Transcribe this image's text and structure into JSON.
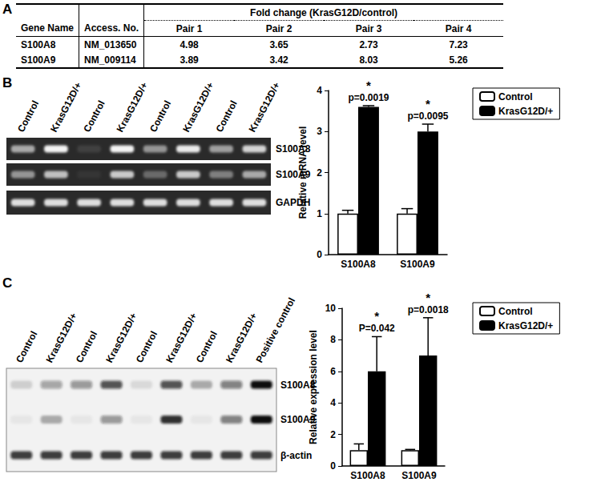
{
  "panel_labels": [
    "A",
    "B",
    "C"
  ],
  "table": {
    "group_header": "Fold change (KrasG12D/control)",
    "columns": [
      "Gene Name",
      "Access. No.",
      "Pair 1",
      "Pair 2",
      "Pair 3",
      "Pair 4"
    ],
    "rows": [
      [
        "S100A8",
        "NM_013650",
        4.98,
        3.65,
        2.73,
        7.23
      ],
      [
        "S100A9",
        "NM_009114",
        3.89,
        3.42,
        8.03,
        5.26
      ]
    ]
  },
  "gels": [
    {
      "style": "dark",
      "lanes": [
        "Control",
        "KrasG12D/+",
        "Control",
        "KrasG12D/+",
        "Control",
        "KrasG12D/+",
        "Control",
        "KrasG12D/+"
      ],
      "rows": [
        {
          "label": "S100A8",
          "intensity": [
            0.6,
            0.95,
            0.1,
            0.95,
            0.5,
            0.9,
            0.55,
            0.8
          ]
        },
        {
          "label": "S100A9",
          "intensity": [
            0.5,
            0.7,
            0.05,
            0.75,
            0.3,
            0.75,
            0.4,
            0.6
          ]
        },
        {
          "label": "GAPDH",
          "intensity": [
            0.85,
            0.85,
            0.85,
            0.85,
            0.85,
            0.85,
            0.85,
            0.85
          ]
        }
      ]
    },
    {
      "style": "light",
      "lanes": [
        "Control",
        "KrasG12D/+",
        "Control",
        "KrasG12D/+",
        "Control",
        "KrasG12D/+",
        "Control",
        "KrasG12D/+",
        "Positive control"
      ],
      "rows": [
        {
          "label": "S100A8",
          "intensity": [
            0.15,
            0.35,
            0.4,
            0.7,
            0.1,
            0.7,
            0.3,
            0.5,
            1.0
          ]
        },
        {
          "label": "S100A9",
          "intensity": [
            0.05,
            0.3,
            0.05,
            0.4,
            0.05,
            0.85,
            0.05,
            0.5,
            1.0
          ]
        },
        {
          "label": "β-actin",
          "intensity": [
            0.8,
            0.8,
            0.8,
            0.8,
            0.8,
            0.8,
            0.8,
            0.8,
            0.8
          ]
        }
      ]
    }
  ],
  "chart_data": [
    {
      "type": "bar",
      "y_label": "Relative mRNA level",
      "categories": [
        "S100A8",
        "S100A9"
      ],
      "series": [
        {
          "name": "Control",
          "color": "#ffffff",
          "values": [
            1,
            1
          ],
          "errors": [
            0.08,
            0.12
          ]
        },
        {
          "name": "KrasG12D/+",
          "color": "#000000",
          "values": [
            3.6,
            3.0
          ],
          "errors": [
            0.03,
            0.18
          ]
        }
      ],
      "ylim": [
        0,
        4
      ],
      "yticks": [
        0,
        1,
        2,
        3,
        4
      ],
      "grid": false,
      "legend": "upper right",
      "annotations": [
        {
          "category": "S100A8",
          "series": "KrasG12D/+",
          "texts": [
            "*",
            "p=0.0019"
          ]
        },
        {
          "category": "S100A9",
          "series": "KrasG12D/+",
          "texts": [
            "*",
            "p=0.0095"
          ]
        }
      ]
    },
    {
      "type": "bar",
      "y_label": "Relative expression level",
      "categories": [
        "S100A8",
        "S100A9"
      ],
      "series": [
        {
          "name": "Control",
          "color": "#ffffff",
          "values": [
            1,
            1
          ],
          "errors": [
            0.4,
            0.05
          ]
        },
        {
          "name": "KrasG12D/+",
          "color": "#000000",
          "values": [
            6.0,
            7.0
          ],
          "errors": [
            2.2,
            2.4
          ]
        }
      ],
      "ylim": [
        0,
        10
      ],
      "yticks": [
        0,
        2,
        4,
        6,
        8,
        10
      ],
      "grid": false,
      "legend": "upper right",
      "annotations": [
        {
          "category": "S100A8",
          "series": "KrasG12D/+",
          "texts": [
            "*",
            "P=0.042"
          ]
        },
        {
          "category": "S100A9",
          "series": "KrasG12D/+",
          "texts": [
            "*",
            "p=0.0018"
          ]
        }
      ]
    }
  ]
}
